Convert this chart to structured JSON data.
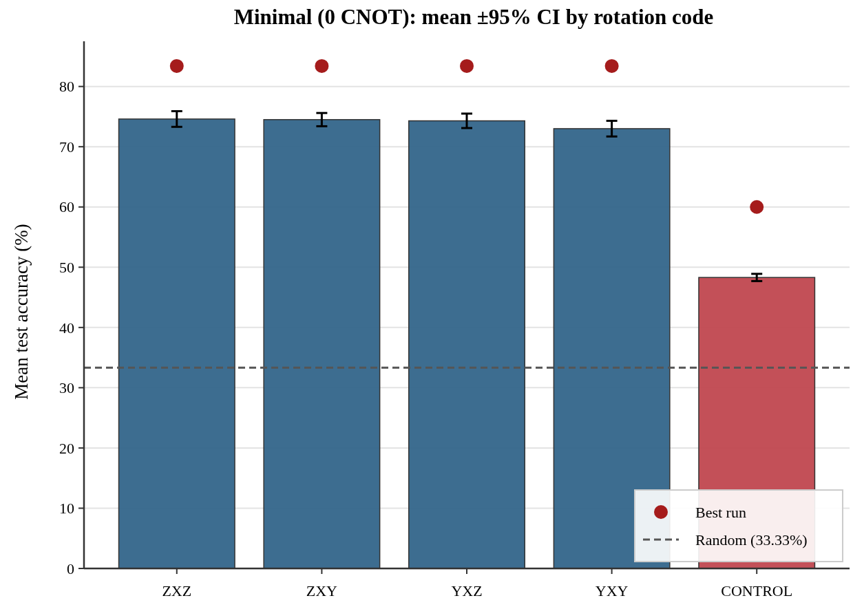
{
  "chart_data": {
    "type": "bar",
    "title": "Minimal (0 CNOT): mean ±95% CI by rotation code",
    "ylabel": "Mean test accuracy (%)",
    "categories": [
      "ZXZ",
      "ZXY",
      "YXZ",
      "YXY",
      "CONTROL"
    ],
    "series": [
      {
        "values": [
          74.6,
          74.5,
          74.3,
          73.0,
          48.3
        ],
        "colors": [
          "#33658a",
          "#33658a",
          "#33658a",
          "#33658a",
          "#c0474f"
        ],
        "errors": [
          1.3,
          1.1,
          1.2,
          1.3,
          0.6
        ]
      },
      {
        "type": "scatter",
        "name": "Best run",
        "color": "#a51c1c",
        "x": [
          "ZXZ",
          "ZXY",
          "YXZ",
          "YXY",
          "CONTROL"
        ],
        "values": [
          83.4,
          83.4,
          83.4,
          83.4,
          60.0
        ]
      }
    ],
    "ylim": [
      0,
      87.5
    ],
    "yticks": [
      0,
      10,
      20,
      30,
      40,
      50,
      60,
      70,
      80
    ],
    "grid": "y",
    "legend": "bottom right",
    "marker": "circle",
    "ref_lines": [
      {
        "axis": "y",
        "value": 33.33,
        "label": "Random (33.33%)",
        "color": "#555555",
        "line_style": "dashed"
      }
    ]
  }
}
